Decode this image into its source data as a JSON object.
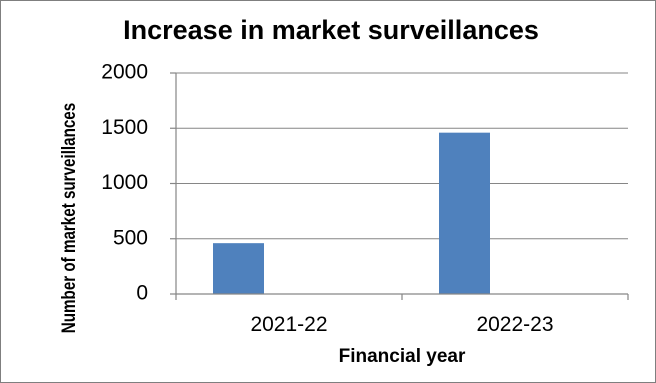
{
  "chart_data": {
    "type": "bar",
    "title": "Increase in market surveillances",
    "xlabel": "Financial year",
    "ylabel": "Number of market surveillances",
    "categories": [
      "2021-22",
      "2022-23"
    ],
    "values": [
      460,
      1460
    ],
    "yticks": [
      "0",
      "500",
      "1000",
      "1500",
      "2000"
    ],
    "ylim": [
      0,
      2000
    ],
    "grid": true,
    "legend": "none",
    "bar_color": "#4f81bd"
  }
}
